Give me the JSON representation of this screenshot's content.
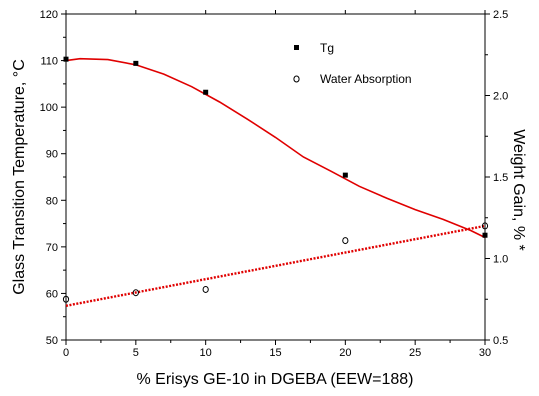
{
  "chart_data": {
    "type": "scatter",
    "xlabel": "% Erisys GE-10 in DGEBA (EEW=188)",
    "ylabel_left": "Glass Transition Temperature, °C",
    "ylabel_right": "Weight Gain, % *",
    "xlim": [
      0,
      30
    ],
    "ylim_left": [
      50,
      120
    ],
    "ylim_right": [
      0.5,
      2.5
    ],
    "x_ticks": [
      0,
      5,
      10,
      15,
      20,
      25,
      30
    ],
    "y_left_ticks": [
      50,
      60,
      70,
      80,
      90,
      100,
      110,
      120
    ],
    "y_right_ticks": [
      "0.5",
      "1.0",
      "1.5",
      "2.0",
      "2.5"
    ],
    "grid": false,
    "legend_position": "top-right",
    "colors": {
      "fit_line": "#e00000",
      "marker": "#000000",
      "axes": "#000000"
    },
    "series": [
      {
        "name": "Tg",
        "axis": "left",
        "marker": "filled-square",
        "x": [
          0,
          5,
          10,
          20,
          30
        ],
        "y": [
          110.3,
          109.4,
          103.2,
          85.4,
          72.5
        ]
      },
      {
        "name": "Water Absorption",
        "axis": "right",
        "marker": "open-circle",
        "x": [
          0,
          5,
          10,
          20,
          30
        ],
        "y": [
          0.75,
          0.79,
          0.81,
          1.11,
          1.2
        ]
      }
    ],
    "fits": [
      {
        "for_series": "Tg",
        "axis": "left",
        "style": "solid",
        "points": [
          [
            0,
            110
          ],
          [
            1,
            110.4
          ],
          [
            3,
            110.2
          ],
          [
            5,
            109.1
          ],
          [
            7,
            107.1
          ],
          [
            9,
            104.4
          ],
          [
            11,
            101.1
          ],
          [
            13,
            97.4
          ],
          [
            15,
            93.5
          ],
          [
            17,
            89.3
          ],
          [
            19,
            86.2
          ],
          [
            21,
            83.0
          ],
          [
            23,
            80.4
          ],
          [
            25,
            78.0
          ],
          [
            27,
            75.9
          ],
          [
            29,
            73.5
          ],
          [
            30,
            72
          ]
        ]
      },
      {
        "for_series": "Water Absorption",
        "axis": "right",
        "style": "dotted",
        "points": [
          [
            0,
            0.71
          ],
          [
            30,
            1.2
          ]
        ]
      }
    ]
  }
}
